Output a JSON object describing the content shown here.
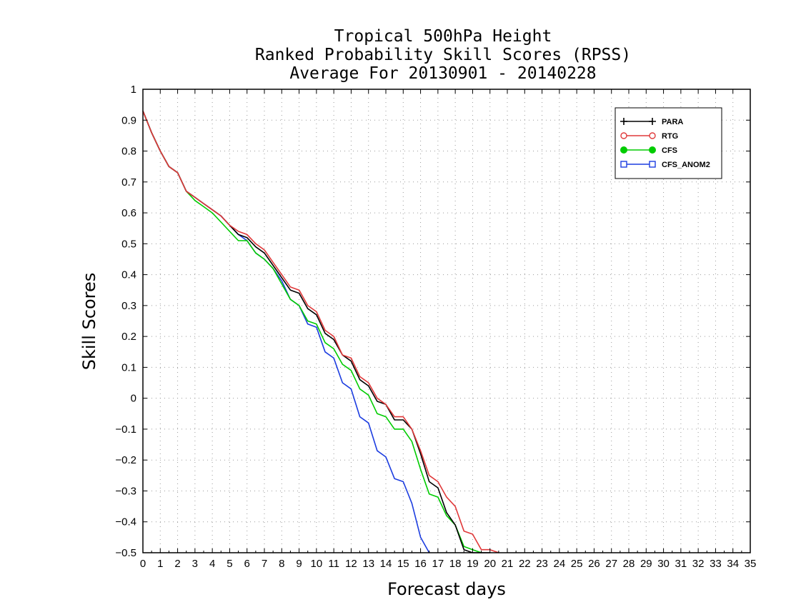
{
  "chart_data": {
    "type": "line",
    "title": [
      "Tropical 500hPa Height",
      "Ranked Probability Skill Scores (RPSS)",
      "Average For 20130901 - 20140228"
    ],
    "xlabel": "Forecast days",
    "ylabel": "Skill Scores",
    "xlim": [
      0,
      35
    ],
    "ylim": [
      -0.5,
      1
    ],
    "xticks": [
      "0",
      "1",
      "2",
      "3",
      "4",
      "5",
      "6",
      "7",
      "8",
      "9",
      "10",
      "11",
      "12",
      "13",
      "14",
      "15",
      "16",
      "17",
      "18",
      "19",
      "20",
      "21",
      "22",
      "23",
      "24",
      "25",
      "26",
      "27",
      "28",
      "29",
      "30",
      "31",
      "32",
      "33",
      "34",
      "35"
    ],
    "yticks": [
      "−0.5",
      "−0.4",
      "−0.3",
      "−0.2",
      "−0.1",
      "0",
      "0.1",
      "0.2",
      "0.3",
      "0.4",
      "0.5",
      "0.6",
      "0.7",
      "0.8",
      "0.9",
      "1"
    ],
    "grid": true,
    "legend_position": "top-right",
    "series": [
      {
        "name": "PARA",
        "color": "#000000",
        "marker": "plus",
        "x": [
          0,
          0.5,
          1,
          1.5,
          2,
          2.5,
          3,
          3.5,
          4,
          4.5,
          5,
          5.5,
          6,
          6.5,
          7,
          7.5,
          8,
          8.5,
          9,
          9.5,
          10,
          10.5,
          11,
          11.5,
          12,
          12.5,
          13,
          13.5,
          14,
          14.5,
          15,
          15.5,
          16,
          16.5,
          17,
          17.5,
          18,
          18.5,
          19,
          19.5,
          20
        ],
        "y": [
          0.93,
          0.86,
          0.8,
          0.75,
          0.73,
          0.67,
          0.65,
          0.63,
          0.61,
          0.59,
          0.56,
          0.53,
          0.52,
          0.49,
          0.47,
          0.43,
          0.39,
          0.35,
          0.34,
          0.29,
          0.27,
          0.21,
          0.19,
          0.14,
          0.12,
          0.06,
          0.04,
          -0.01,
          -0.02,
          -0.07,
          -0.07,
          -0.1,
          -0.18,
          -0.27,
          -0.29,
          -0.37,
          -0.41,
          -0.49,
          -0.5,
          -0.5,
          -0.5
        ]
      },
      {
        "name": "RTG",
        "color": "#e0393a",
        "marker": "circle",
        "x": [
          0,
          0.5,
          1,
          1.5,
          2,
          2.5,
          3,
          3.5,
          4,
          4.5,
          5,
          5.5,
          6,
          6.5,
          7,
          7.5,
          8,
          8.5,
          9,
          9.5,
          10,
          10.5,
          11,
          11.5,
          12,
          12.5,
          13,
          13.5,
          14,
          14.5,
          15,
          15.5,
          16,
          16.5,
          17,
          17.5,
          18,
          18.5,
          19,
          19.5,
          20,
          20.5
        ],
        "y": [
          0.93,
          0.86,
          0.8,
          0.75,
          0.73,
          0.67,
          0.65,
          0.63,
          0.61,
          0.59,
          0.56,
          0.54,
          0.53,
          0.5,
          0.48,
          0.44,
          0.4,
          0.36,
          0.35,
          0.3,
          0.28,
          0.22,
          0.2,
          0.14,
          0.13,
          0.07,
          0.05,
          0,
          -0.02,
          -0.06,
          -0.06,
          -0.1,
          -0.17,
          -0.25,
          -0.27,
          -0.32,
          -0.35,
          -0.43,
          -0.44,
          -0.49,
          -0.49,
          -0.5
        ]
      },
      {
        "name": "CFS",
        "color": "#00cc00",
        "marker": "filled-circle",
        "x": [
          0,
          0.5,
          1,
          1.5,
          2,
          2.5,
          3,
          3.5,
          4,
          4.5,
          5,
          5.5,
          6,
          6.5,
          7,
          7.5,
          8,
          8.5,
          9,
          9.5,
          10,
          10.5,
          11,
          11.5,
          12,
          12.5,
          13,
          13.5,
          14,
          14.5,
          15,
          15.5,
          16,
          16.5,
          17,
          17.5,
          18,
          18.5,
          19,
          19.5
        ],
        "y": [
          0.93,
          0.86,
          0.8,
          0.75,
          0.73,
          0.67,
          0.64,
          0.62,
          0.6,
          0.57,
          0.54,
          0.51,
          0.51,
          0.47,
          0.45,
          0.42,
          0.37,
          0.32,
          0.3,
          0.25,
          0.24,
          0.18,
          0.16,
          0.11,
          0.09,
          0.03,
          0.01,
          -0.05,
          -0.06,
          -0.1,
          -0.1,
          -0.14,
          -0.23,
          -0.31,
          -0.32,
          -0.38,
          -0.41,
          -0.48,
          -0.49,
          -0.5
        ]
      },
      {
        "name": "CFS_ANOM2",
        "color": "#1c3de0",
        "marker": "square",
        "x": [
          0,
          0.5,
          1,
          1.5,
          2,
          2.5,
          3,
          3.5,
          4,
          4.5,
          5,
          5.5,
          6,
          6.5,
          7,
          7.5,
          8,
          8.5,
          9,
          9.5,
          10,
          10.5,
          11,
          11.5,
          12,
          12.5,
          13,
          13.5,
          14,
          14.5,
          15,
          15.5,
          16,
          16.5
        ],
        "y": [
          0.93,
          0.86,
          0.8,
          0.75,
          0.73,
          0.67,
          0.65,
          0.63,
          0.61,
          0.59,
          0.56,
          0.53,
          0.51,
          0.47,
          0.45,
          0.42,
          0.38,
          0.32,
          0.3,
          0.24,
          0.23,
          0.15,
          0.13,
          0.05,
          0.03,
          -0.06,
          -0.08,
          -0.17,
          -0.19,
          -0.26,
          -0.27,
          -0.34,
          -0.45,
          -0.5
        ]
      }
    ]
  }
}
